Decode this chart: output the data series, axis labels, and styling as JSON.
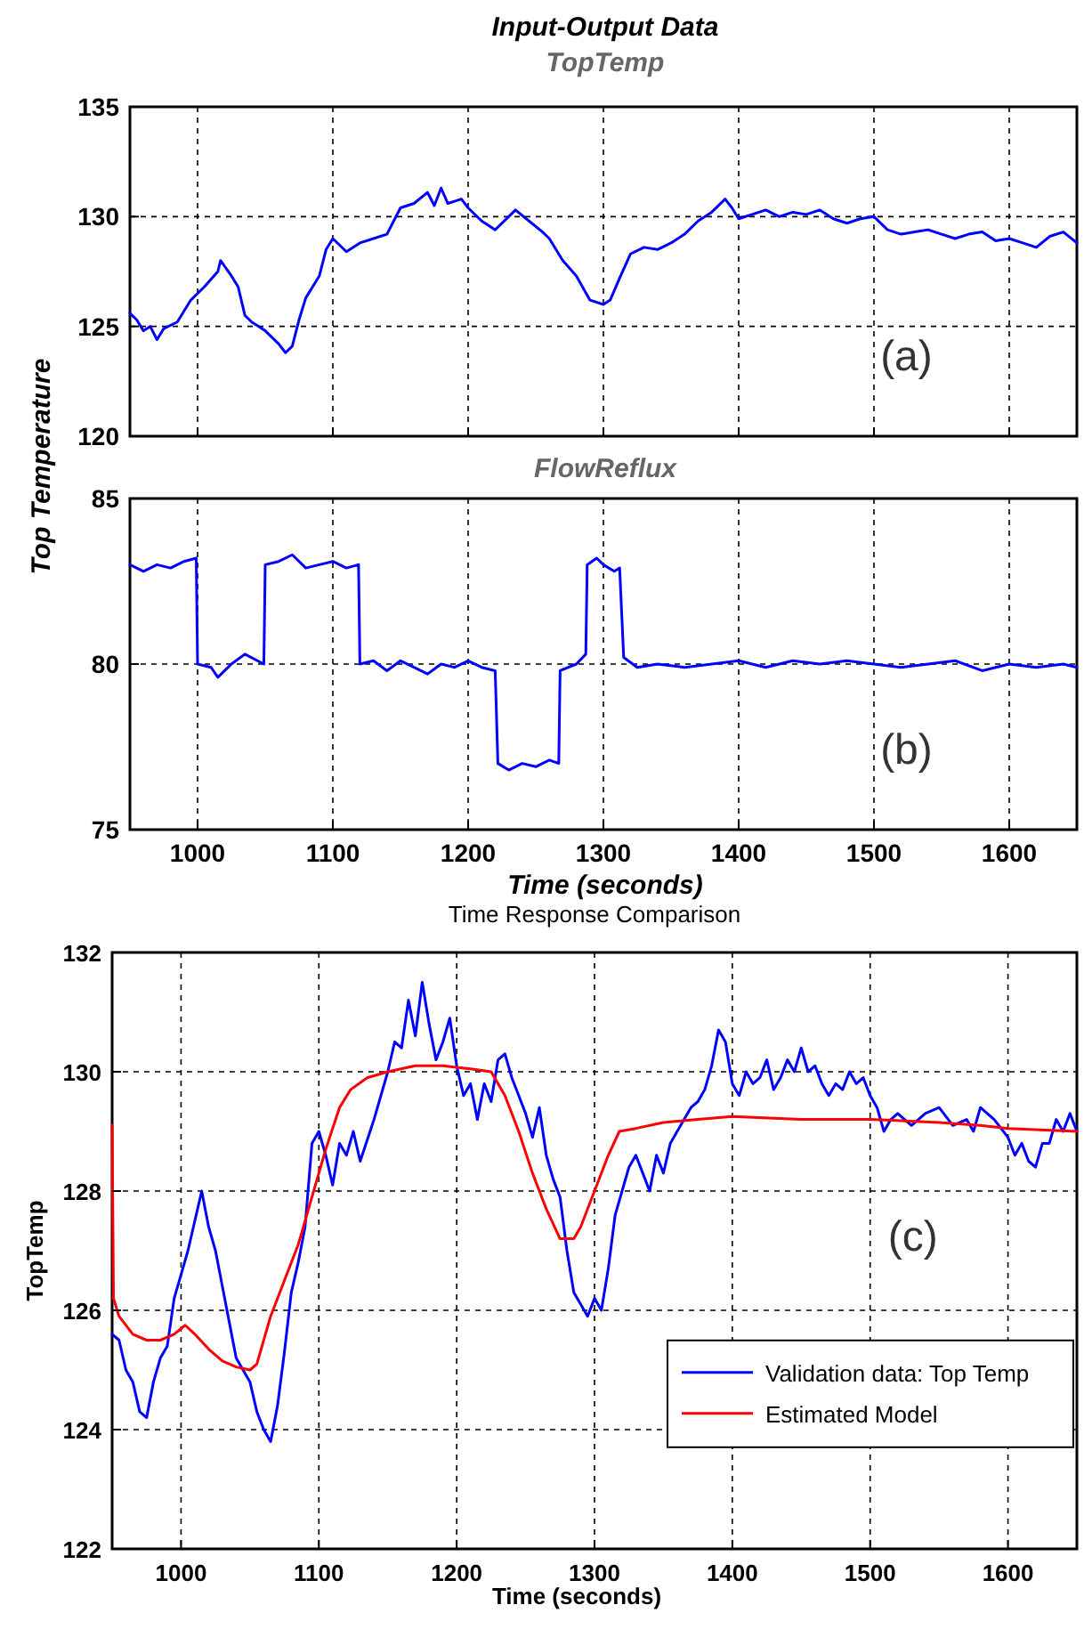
{
  "chart_data": [
    {
      "type": "line",
      "title": "Input-Output Data",
      "subtitle": "TopTemp",
      "ylabel": "Top Temperature",
      "annotations": [
        "(a)"
      ],
      "xlim": [
        950,
        1650
      ],
      "ylim": [
        120,
        135
      ],
      "xticks": [
        1000,
        1100,
        1200,
        1300,
        1400,
        1500,
        1600
      ],
      "yticks": [
        120,
        125,
        130,
        135
      ],
      "tick_labels": "y",
      "grid": true,
      "legend": false,
      "series": [
        {
          "color": "#0000ff",
          "x": [
            950,
            955,
            960,
            965,
            970,
            975,
            985,
            995,
            1005,
            1015,
            1017,
            1025,
            1030,
            1035,
            1040,
            1050,
            1060,
            1065,
            1070,
            1075,
            1080,
            1090,
            1095,
            1100,
            1110,
            1120,
            1130,
            1140,
            1145,
            1150,
            1160,
            1170,
            1175,
            1180,
            1185,
            1195,
            1200,
            1210,
            1220,
            1230,
            1235,
            1245,
            1255,
            1260,
            1270,
            1280,
            1290,
            1300,
            1305,
            1312,
            1320,
            1330,
            1340,
            1350,
            1360,
            1370,
            1380,
            1390,
            1395,
            1400,
            1410,
            1420,
            1430,
            1440,
            1450,
            1460,
            1470,
            1480,
            1490,
            1500,
            1510,
            1520,
            1530,
            1540,
            1550,
            1560,
            1570,
            1580,
            1590,
            1600,
            1610,
            1620,
            1630,
            1640,
            1650
          ],
          "values": [
            125.6,
            125.3,
            124.8,
            125.0,
            124.4,
            124.9,
            125.2,
            126.2,
            126.8,
            127.5,
            128.0,
            127.3,
            126.8,
            125.5,
            125.2,
            124.8,
            124.2,
            123.8,
            124.1,
            125.3,
            126.3,
            127.3,
            128.5,
            129.0,
            128.4,
            128.8,
            129.0,
            129.2,
            129.8,
            130.4,
            130.6,
            131.1,
            130.5,
            131.3,
            130.6,
            130.8,
            130.4,
            129.8,
            129.4,
            130.0,
            130.3,
            129.8,
            129.3,
            129.0,
            128.0,
            127.3,
            126.2,
            126.0,
            126.2,
            127.2,
            128.3,
            128.6,
            128.5,
            128.8,
            129.2,
            129.8,
            130.2,
            130.8,
            130.4,
            129.9,
            130.1,
            130.3,
            130.0,
            130.2,
            130.1,
            130.3,
            129.9,
            129.7,
            129.9,
            130.0,
            129.4,
            129.2,
            129.3,
            129.4,
            129.2,
            129.0,
            129.2,
            129.3,
            128.9,
            129.0,
            128.8,
            128.6,
            129.1,
            129.3,
            128.8
          ]
        }
      ]
    },
    {
      "type": "line",
      "title": "FlowReflux",
      "xlabel": "Time (seconds)",
      "annotations": [
        "(b)"
      ],
      "xlim": [
        950,
        1650
      ],
      "ylim": [
        75,
        85
      ],
      "xticks": [
        1000,
        1100,
        1200,
        1300,
        1400,
        1500,
        1600
      ],
      "yticks": [
        75,
        80,
        85
      ],
      "grid": true,
      "legend": false,
      "series": [
        {
          "color": "#0000ff",
          "x": [
            950,
            960,
            970,
            980,
            990,
            999,
            1000,
            1010,
            1015,
            1025,
            1035,
            1049,
            1050,
            1060,
            1070,
            1080,
            1090,
            1100,
            1110,
            1119,
            1120,
            1130,
            1140,
            1150,
            1160,
            1170,
            1180,
            1190,
            1200,
            1210,
            1220,
            1222,
            1230,
            1240,
            1250,
            1260,
            1267,
            1268,
            1280,
            1287,
            1288,
            1295,
            1300,
            1308,
            1312,
            1315,
            1325,
            1340,
            1360,
            1380,
            1400,
            1420,
            1440,
            1460,
            1480,
            1500,
            1520,
            1540,
            1560,
            1580,
            1600,
            1620,
            1640,
            1650
          ],
          "values": [
            83.0,
            82.8,
            83.0,
            82.9,
            83.1,
            83.2,
            80.0,
            79.9,
            79.6,
            80.0,
            80.3,
            80.0,
            83.0,
            83.1,
            83.3,
            82.9,
            83.0,
            83.1,
            82.9,
            83.0,
            80.0,
            80.1,
            79.8,
            80.1,
            79.9,
            79.7,
            80.0,
            79.9,
            80.1,
            79.9,
            79.8,
            77.0,
            76.8,
            77.0,
            76.9,
            77.1,
            77.0,
            79.8,
            80.0,
            80.3,
            83.0,
            83.2,
            83.0,
            82.8,
            82.9,
            80.2,
            79.9,
            80.0,
            79.9,
            80.0,
            80.1,
            79.9,
            80.1,
            80.0,
            80.1,
            80.0,
            79.9,
            80.0,
            80.1,
            79.8,
            80.0,
            79.9,
            80.0,
            79.9
          ]
        }
      ]
    },
    {
      "type": "line",
      "title": "Time Response Comparison",
      "xlabel": "Time (seconds)",
      "ylabel": "TopTemp",
      "annotations": [
        "(c)"
      ],
      "xlim": [
        950,
        1650
      ],
      "ylim": [
        122,
        132
      ],
      "xticks": [
        1000,
        1100,
        1200,
        1300,
        1400,
        1500,
        1600
      ],
      "yticks": [
        122,
        124,
        126,
        128,
        130,
        132
      ],
      "grid": true,
      "legend": "bottom right",
      "series": [
        {
          "name": "Validation data: Top Temp",
          "color": "#0000ff",
          "x": [
            950,
            955,
            960,
            965,
            970,
            975,
            980,
            985,
            990,
            995,
            1000,
            1005,
            1010,
            1015,
            1020,
            1025,
            1030,
            1035,
            1040,
            1045,
            1050,
            1055,
            1060,
            1065,
            1070,
            1075,
            1080,
            1085,
            1090,
            1095,
            1100,
            1105,
            1110,
            1115,
            1120,
            1125,
            1130,
            1140,
            1150,
            1155,
            1160,
            1165,
            1170,
            1175,
            1180,
            1185,
            1190,
            1195,
            1200,
            1205,
            1210,
            1215,
            1220,
            1225,
            1230,
            1235,
            1240,
            1245,
            1250,
            1255,
            1260,
            1265,
            1270,
            1275,
            1280,
            1285,
            1290,
            1295,
            1300,
            1305,
            1310,
            1315,
            1320,
            1325,
            1330,
            1335,
            1340,
            1345,
            1350,
            1355,
            1360,
            1365,
            1370,
            1375,
            1380,
            1385,
            1390,
            1395,
            1400,
            1405,
            1410,
            1415,
            1420,
            1425,
            1430,
            1435,
            1440,
            1445,
            1450,
            1455,
            1460,
            1465,
            1470,
            1475,
            1480,
            1485,
            1490,
            1495,
            1500,
            1505,
            1510,
            1515,
            1520,
            1530,
            1540,
            1550,
            1560,
            1570,
            1575,
            1580,
            1590,
            1600,
            1605,
            1610,
            1615,
            1620,
            1625,
            1630,
            1635,
            1640,
            1645,
            1650
          ],
          "values": [
            125.6,
            125.5,
            125.0,
            124.8,
            124.3,
            124.2,
            124.8,
            125.2,
            125.4,
            126.2,
            126.6,
            127.0,
            127.5,
            128.0,
            127.4,
            127.0,
            126.4,
            125.8,
            125.2,
            125.0,
            124.8,
            124.3,
            124.0,
            123.8,
            124.4,
            125.3,
            126.3,
            126.8,
            127.4,
            128.8,
            129.0,
            128.6,
            128.1,
            128.8,
            128.6,
            129.0,
            128.5,
            129.2,
            130.0,
            130.5,
            130.4,
            131.2,
            130.6,
            131.5,
            130.8,
            130.2,
            130.5,
            130.9,
            130.1,
            129.6,
            129.8,
            129.2,
            129.8,
            129.5,
            130.2,
            130.3,
            129.9,
            129.6,
            129.3,
            128.9,
            129.4,
            128.6,
            128.2,
            127.9,
            127.0,
            126.3,
            126.1,
            125.9,
            126.2,
            126.0,
            126.7,
            127.6,
            128.0,
            128.4,
            128.6,
            128.3,
            128.0,
            128.6,
            128.3,
            128.8,
            129.0,
            129.2,
            129.4,
            129.5,
            129.7,
            130.1,
            130.7,
            130.5,
            129.8,
            129.6,
            130.0,
            129.8,
            129.9,
            130.2,
            129.7,
            129.9,
            130.2,
            130.0,
            130.4,
            130.0,
            130.1,
            129.8,
            129.6,
            129.8,
            129.7,
            130.0,
            129.8,
            129.9,
            129.6,
            129.4,
            129.0,
            129.2,
            129.3,
            129.1,
            129.3,
            129.4,
            129.1,
            129.2,
            129.0,
            129.4,
            129.2,
            128.9,
            128.6,
            128.8,
            128.5,
            128.4,
            128.8,
            128.8,
            129.2,
            129.0,
            129.3,
            129.0
          ]
        },
        {
          "name": "Estimated Model",
          "color": "#ff0000",
          "x": [
            950,
            951,
            955,
            965,
            975,
            985,
            995,
            1003,
            1010,
            1020,
            1030,
            1040,
            1050,
            1055,
            1065,
            1075,
            1085,
            1095,
            1105,
            1115,
            1123,
            1135,
            1150,
            1170,
            1190,
            1210,
            1225,
            1235,
            1245,
            1255,
            1265,
            1275,
            1285,
            1290,
            1300,
            1310,
            1318,
            1330,
            1350,
            1375,
            1400,
            1450,
            1500,
            1550,
            1580,
            1600,
            1650
          ],
          "values": [
            129.1,
            126.2,
            125.9,
            125.6,
            125.5,
            125.5,
            125.6,
            125.75,
            125.6,
            125.35,
            125.15,
            125.05,
            125.0,
            125.1,
            125.9,
            126.5,
            127.1,
            127.9,
            128.7,
            129.4,
            129.7,
            129.9,
            130.0,
            130.1,
            130.1,
            130.05,
            130.0,
            129.6,
            129.0,
            128.3,
            127.7,
            127.2,
            127.2,
            127.4,
            128.0,
            128.6,
            129.0,
            129.05,
            129.15,
            129.2,
            129.25,
            129.2,
            129.2,
            129.15,
            129.1,
            129.05,
            129.0
          ]
        }
      ]
    }
  ]
}
